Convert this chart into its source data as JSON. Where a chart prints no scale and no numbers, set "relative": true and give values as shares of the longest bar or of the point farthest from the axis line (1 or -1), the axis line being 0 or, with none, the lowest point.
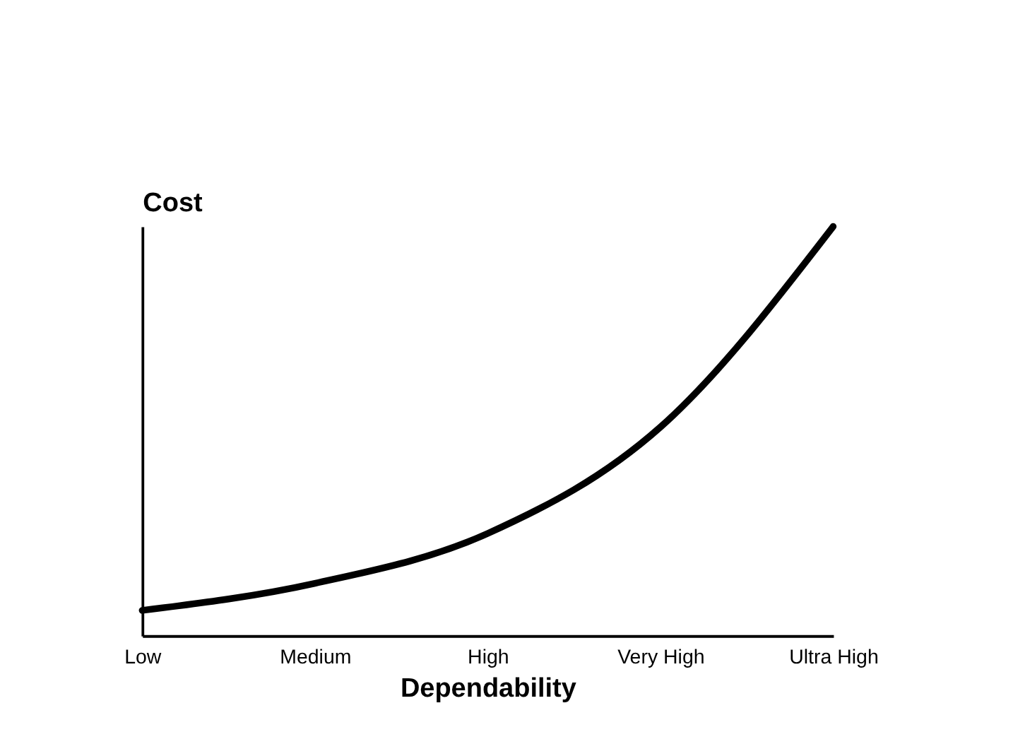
{
  "chart_data": {
    "type": "line",
    "relative": true,
    "xlabel": "Dependability",
    "ylabel": "Cost",
    "categories": [
      "Low",
      "Medium",
      "High",
      "Very High",
      "Ultra High"
    ],
    "series": [
      {
        "color": "#000000",
        "values": [
          0.062,
          0.128,
          0.25,
          0.51,
          1
        ]
      }
    ],
    "grid": false,
    "legend": false,
    "marker": "none",
    "line_style": "solid",
    "tick_labels": "x"
  }
}
